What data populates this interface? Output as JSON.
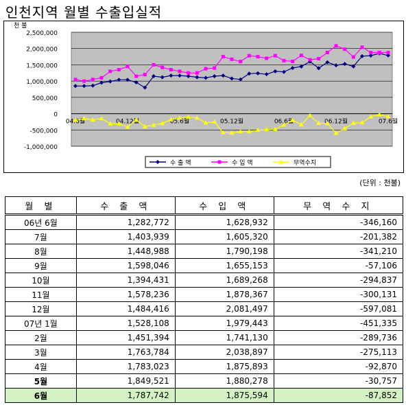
{
  "title": "인천지역 월별 수출입실적",
  "unit_note": "(단위 : 천불)",
  "chart_data": {
    "type": "line",
    "unit_label": "천 불",
    "y_ticks": [
      "2,500,000",
      "2,000,000",
      "1,500,000",
      "1,000,000",
      "500,000",
      "0",
      "-500,000",
      "-1,000,000"
    ],
    "ylim": [
      -1000000,
      2500000
    ],
    "x_tick_labels": [
      "04.6월",
      "04.12월",
      "05.6월",
      "05.12월",
      "06.6월",
      "06.12월",
      "07.6월"
    ],
    "x": [
      "04.6",
      "04.7",
      "04.8",
      "04.9",
      "04.10",
      "04.11",
      "04.12",
      "05.1",
      "05.2",
      "05.3",
      "05.4",
      "05.5",
      "05.6",
      "05.7",
      "05.8",
      "05.9",
      "05.10",
      "05.11",
      "05.12",
      "06.1",
      "06.2",
      "06.3",
      "06.4",
      "06.5",
      "06.6",
      "06.7",
      "06.8",
      "06.9",
      "06.10",
      "06.11",
      "06.12",
      "07.1",
      "07.2",
      "07.3",
      "07.4",
      "07.5",
      "07.6"
    ],
    "series": [
      {
        "name": "수 출 액",
        "color": "#000080",
        "marker": "diamond",
        "values": [
          850000,
          850000,
          860000,
          950000,
          990000,
          1040000,
          1040000,
          960000,
          800000,
          1150000,
          1120000,
          1170000,
          1170000,
          1150000,
          1120000,
          1100000,
          1150000,
          1170000,
          1080000,
          1050000,
          1230000,
          1240000,
          1210000,
          1300000,
          1282772,
          1403939,
          1448988,
          1598046,
          1394431,
          1578236,
          1484416,
          1528108,
          1451394,
          1763784,
          1783023,
          1849521,
          1787742
        ]
      },
      {
        "name": "수 입 액",
        "color": "#ff00ff",
        "marker": "square",
        "values": [
          1050000,
          1000000,
          1050000,
          1100000,
          1300000,
          1350000,
          1450000,
          1150000,
          1200000,
          1500000,
          1420000,
          1350000,
          1300000,
          1250000,
          1250000,
          1380000,
          1400000,
          1750000,
          1670000,
          1600000,
          1780000,
          1750000,
          1700000,
          1780000,
          1628932,
          1605320,
          1790198,
          1655153,
          1689268,
          1878367,
          2081497,
          1979443,
          1741130,
          2038897,
          1875893,
          1880278,
          1875594
        ]
      },
      {
        "name": "무역수지",
        "color": "#ffff00",
        "marker": "triangle",
        "values": [
          -200000,
          -150000,
          -190000,
          -150000,
          -310000,
          -310000,
          -410000,
          -190000,
          -400000,
          -350000,
          -300000,
          -180000,
          -130000,
          -100000,
          -130000,
          -280000,
          -250000,
          -580000,
          -590000,
          -550000,
          -550000,
          -510000,
          -490000,
          -480000,
          -346160,
          -201382,
          -341210,
          -57106,
          -294837,
          -300131,
          -597081,
          -451335,
          -289736,
          -275113,
          -92870,
          -30757,
          -87852
        ]
      }
    ]
  },
  "table": {
    "headers": [
      "월  별",
      "수 출 액",
      "수 입 액",
      "무 역 수 지"
    ],
    "rows": [
      {
        "month": "06년 6월",
        "export": "1,282,772",
        "import": "1,628,932",
        "balance": "-346,160"
      },
      {
        "month": "7월",
        "export": "1,403,939",
        "import": "1,605,320",
        "balance": "-201,382"
      },
      {
        "month": "8월",
        "export": "1,448,988",
        "import": "1,790,198",
        "balance": "-341,210"
      },
      {
        "month": "9월",
        "export": "1,598,046",
        "import": "1,655,153",
        "balance": "-57,106"
      },
      {
        "month": "10월",
        "export": "1,394,431",
        "import": "1,689,268",
        "balance": "-294,837"
      },
      {
        "month": "11월",
        "export": "1,578,236",
        "import": "1,878,367",
        "balance": "-300,131"
      },
      {
        "month": "12월",
        "export": "1,484,416",
        "import": "2,081,497",
        "balance": "-597,081"
      },
      {
        "month": "07년 1월",
        "export": "1,528,108",
        "import": "1,979,443",
        "balance": "-451,335"
      },
      {
        "month": "2월",
        "export": "1,451,394",
        "import": "1,741,130",
        "balance": "-289,736"
      },
      {
        "month": "3월",
        "export": "1,763,784",
        "import": "2,038,897",
        "balance": "-275,113"
      },
      {
        "month": "4월",
        "export": "1,783,023",
        "import": "1,875,893",
        "balance": "-92,870"
      },
      {
        "month": "5월",
        "export": "1,849,521",
        "import": "1,880,278",
        "balance": "-30,757"
      },
      {
        "month": "6월",
        "export": "1,787,742",
        "import": "1,875,594",
        "balance": "-87,852"
      }
    ]
  }
}
